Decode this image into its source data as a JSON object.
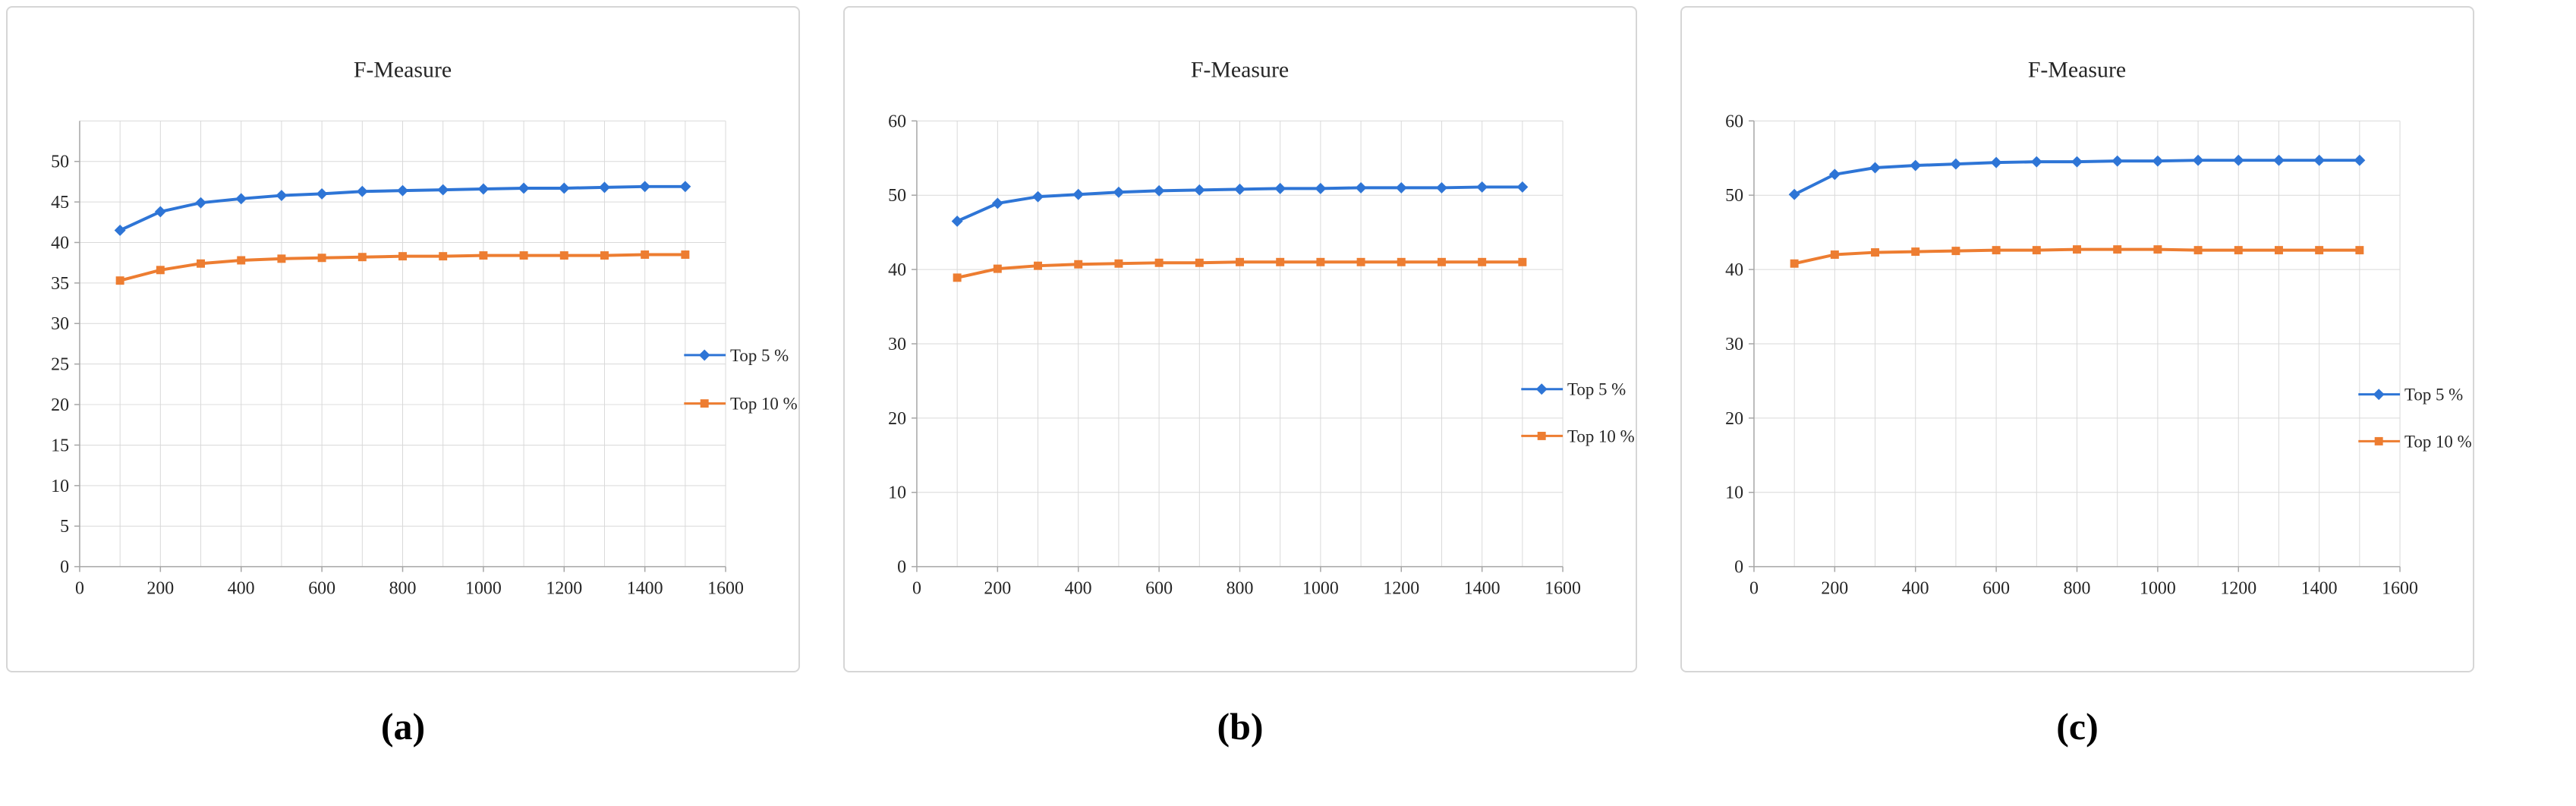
{
  "figure": {
    "background": "#ffffff",
    "panel_border_color": "#d6d6d6"
  },
  "colors": {
    "series_blue": "#2E75D6",
    "series_orange": "#ED7D31",
    "grid": "#d9d9d9",
    "axis": "#a6a6a6",
    "text": "#262626"
  },
  "chart_data": [
    {
      "caption": "(a)",
      "type": "line",
      "title": "F-Measure",
      "x": [
        100,
        200,
        300,
        400,
        500,
        600,
        700,
        800,
        900,
        1000,
        1100,
        1200,
        1300,
        1400,
        1500
      ],
      "series": [
        {
          "name": "Top 5 %",
          "color": "#2E75D6",
          "marker": "diamond",
          "values": [
            41.5,
            43.8,
            44.9,
            45.4,
            45.8,
            46.0,
            46.3,
            46.4,
            46.5,
            46.6,
            46.7,
            46.7,
            46.8,
            46.9,
            46.9
          ]
        },
        {
          "name": "Top 10 %",
          "color": "#ED7D31",
          "marker": "square",
          "values": [
            35.3,
            36.6,
            37.4,
            37.8,
            38.0,
            38.1,
            38.2,
            38.3,
            38.3,
            38.4,
            38.4,
            38.4,
            38.4,
            38.5,
            38.5
          ]
        }
      ],
      "xlim": [
        0,
        1600
      ],
      "xticks": [
        0,
        200,
        400,
        600,
        800,
        1000,
        1200,
        1400,
        1600
      ],
      "xgrid_step": 100,
      "ylim": [
        0,
        55
      ],
      "yticks": [
        0,
        5,
        10,
        15,
        20,
        25,
        30,
        35,
        40,
        45,
        50
      ],
      "grid": true,
      "legend_position": "right",
      "legend_y": [
        460,
        524
      ]
    },
    {
      "caption": "(b)",
      "type": "line",
      "title": "F-Measure",
      "x": [
        100,
        200,
        300,
        400,
        500,
        600,
        700,
        800,
        900,
        1000,
        1100,
        1200,
        1300,
        1400,
        1500
      ],
      "series": [
        {
          "name": "Top 5 %",
          "color": "#2E75D6",
          "marker": "diamond",
          "values": [
            46.5,
            48.9,
            49.8,
            50.1,
            50.4,
            50.6,
            50.7,
            50.8,
            50.9,
            50.9,
            51.0,
            51.0,
            51.0,
            51.1,
            51.1
          ]
        },
        {
          "name": "Top 10 %",
          "color": "#ED7D31",
          "marker": "square",
          "values": [
            38.9,
            40.1,
            40.5,
            40.7,
            40.8,
            40.9,
            40.9,
            41.0,
            41.0,
            41.0,
            41.0,
            41.0,
            41.0,
            41.0,
            41.0
          ]
        }
      ],
      "xlim": [
        0,
        1600
      ],
      "xticks": [
        0,
        200,
        400,
        600,
        800,
        1000,
        1200,
        1400,
        1600
      ],
      "xgrid_step": 100,
      "ylim": [
        0,
        60
      ],
      "yticks": [
        0,
        10,
        20,
        30,
        40,
        50,
        60
      ],
      "grid": true,
      "legend_position": "right",
      "legend_y": [
        505,
        567
      ]
    },
    {
      "caption": "(c)",
      "type": "line",
      "title": "F-Measure",
      "x": [
        100,
        200,
        300,
        400,
        500,
        600,
        700,
        800,
        900,
        1000,
        1100,
        1200,
        1300,
        1400,
        1500
      ],
      "series": [
        {
          "name": "Top 5 %",
          "color": "#2E75D6",
          "marker": "diamond",
          "values": [
            50.1,
            52.8,
            53.7,
            54.0,
            54.2,
            54.4,
            54.5,
            54.5,
            54.6,
            54.6,
            54.7,
            54.7,
            54.7,
            54.7,
            54.7
          ]
        },
        {
          "name": "Top 10 %",
          "color": "#ED7D31",
          "marker": "square",
          "values": [
            40.8,
            42.0,
            42.3,
            42.4,
            42.5,
            42.6,
            42.6,
            42.7,
            42.7,
            42.7,
            42.6,
            42.6,
            42.6,
            42.6,
            42.6
          ]
        }
      ],
      "xlim": [
        0,
        1600
      ],
      "xticks": [
        0,
        200,
        400,
        600,
        800,
        1000,
        1200,
        1400,
        1600
      ],
      "xgrid_step": 100,
      "ylim": [
        0,
        60
      ],
      "yticks": [
        0,
        10,
        20,
        30,
        40,
        50,
        60
      ],
      "grid": true,
      "legend_position": "right",
      "legend_y": [
        512,
        574
      ]
    }
  ]
}
